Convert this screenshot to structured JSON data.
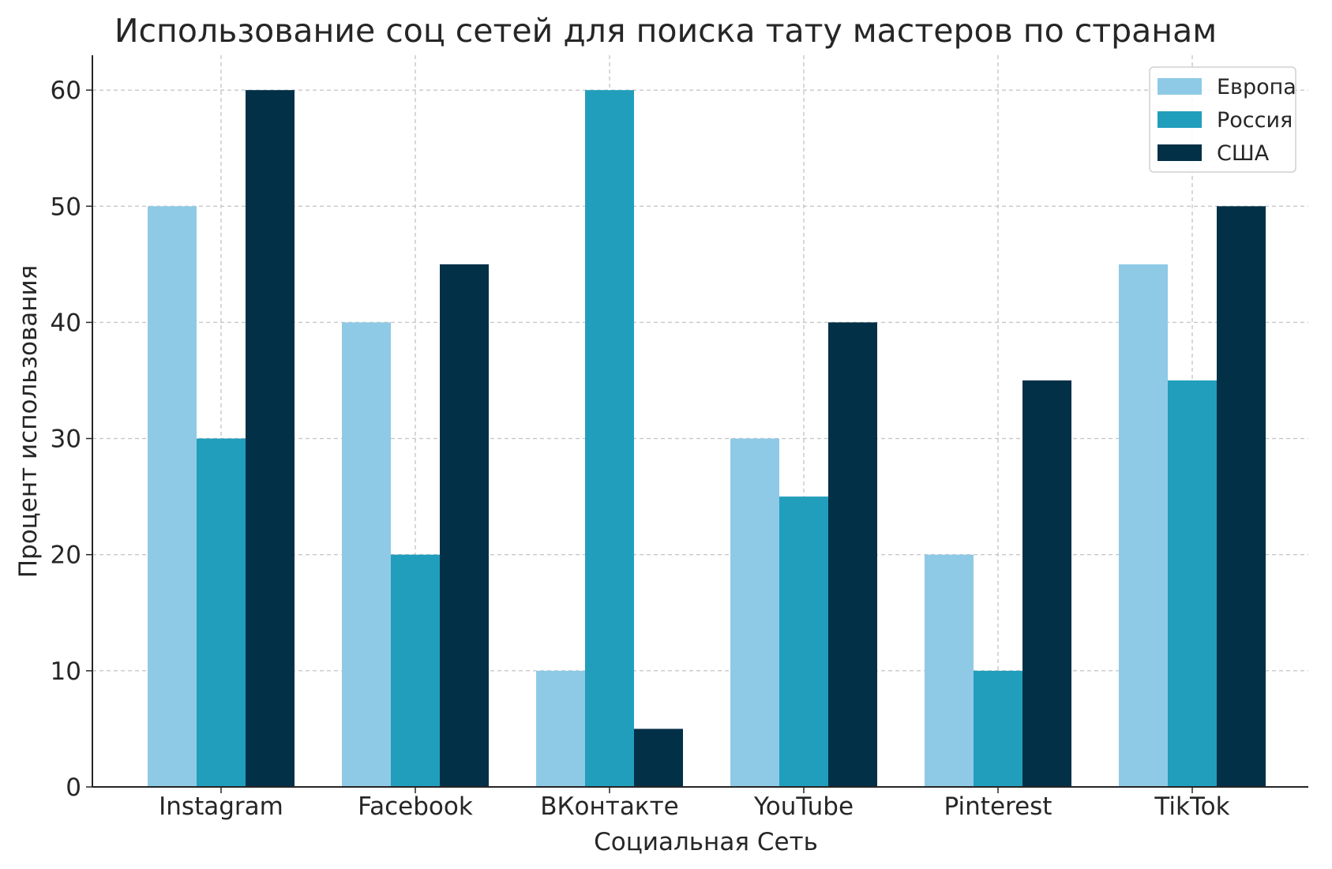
{
  "chart_data": {
    "type": "bar",
    "title": "Использование соц сетей для поиска тату мастеров по странам",
    "xlabel": "Социальная Сеть",
    "ylabel": "Процент использования",
    "categories": [
      "Instagram",
      "Facebook",
      "ВКонтакте",
      "YouTube",
      "Pinterest",
      "TikTok"
    ],
    "series": [
      {
        "name": "Европа",
        "values": [
          50,
          40,
          10,
          30,
          20,
          45
        ],
        "color": "#8ECAE6"
      },
      {
        "name": "Россия",
        "values": [
          30,
          20,
          60,
          25,
          10,
          35
        ],
        "color": "#219EBC"
      },
      {
        "name": "США",
        "values": [
          60,
          45,
          5,
          40,
          35,
          50
        ],
        "color": "#023047"
      }
    ],
    "ylim": [
      0,
      63
    ],
    "yticks": [
      0,
      10,
      20,
      30,
      40,
      50,
      60
    ],
    "grid": true,
    "legend_position": "top-right"
  }
}
